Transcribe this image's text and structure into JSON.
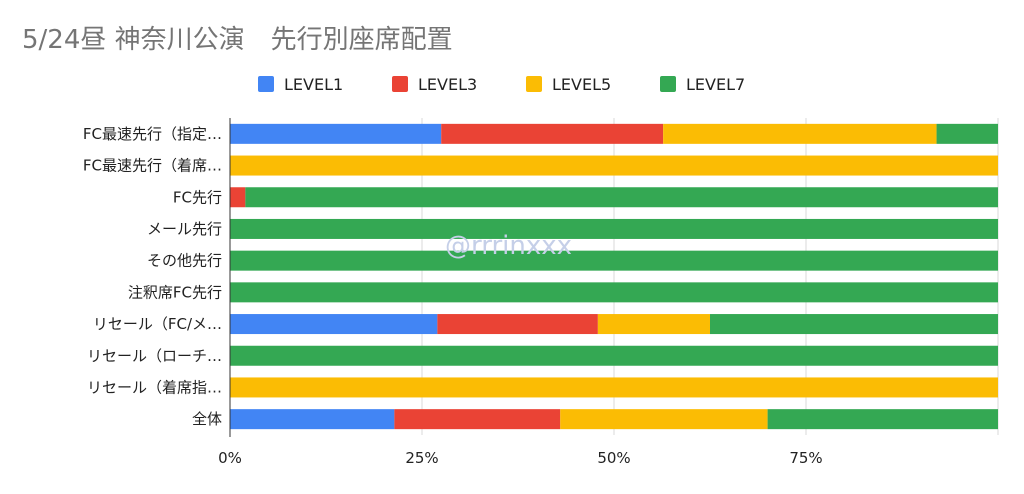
{
  "watermark": "@rrrinxxx",
  "chart_data": {
    "type": "bar",
    "orientation": "horizontal",
    "stacked": "percent",
    "title": "5/24昼 神奈川公演　先行別座席配置",
    "xlabel": "",
    "ylabel": "",
    "xlim": [
      0,
      100
    ],
    "x_ticks": [
      "0%",
      "25%",
      "50%",
      "75%"
    ],
    "grid": true,
    "legend": "top",
    "categories": [
      "FC最速先行（指定…",
      "FC最速先行（着席…",
      "FC先行",
      "メール先行",
      "その他先行",
      "注釈席FC先行",
      "リセール（FC/メ…",
      "リセール（ローチ…",
      "リセール（着席指…",
      "全体"
    ],
    "series": [
      {
        "name": "LEVEL1",
        "color": "#4285f4",
        "values": [
          27.5,
          0,
          0,
          0,
          0,
          0,
          27,
          0,
          0,
          21.4
        ]
      },
      {
        "name": "LEVEL3",
        "color": "#ea4335",
        "values": [
          28.9,
          0,
          2,
          0,
          0,
          0,
          20.9,
          0,
          0,
          21.6
        ]
      },
      {
        "name": "LEVEL5",
        "color": "#fbbc04",
        "values": [
          35.6,
          100,
          0,
          0,
          0,
          0,
          14.6,
          0,
          100,
          27
        ]
      },
      {
        "name": "LEVEL7",
        "color": "#34a853",
        "values": [
          8,
          0,
          98,
          100,
          100,
          100,
          37.5,
          100,
          0,
          30
        ]
      }
    ]
  }
}
